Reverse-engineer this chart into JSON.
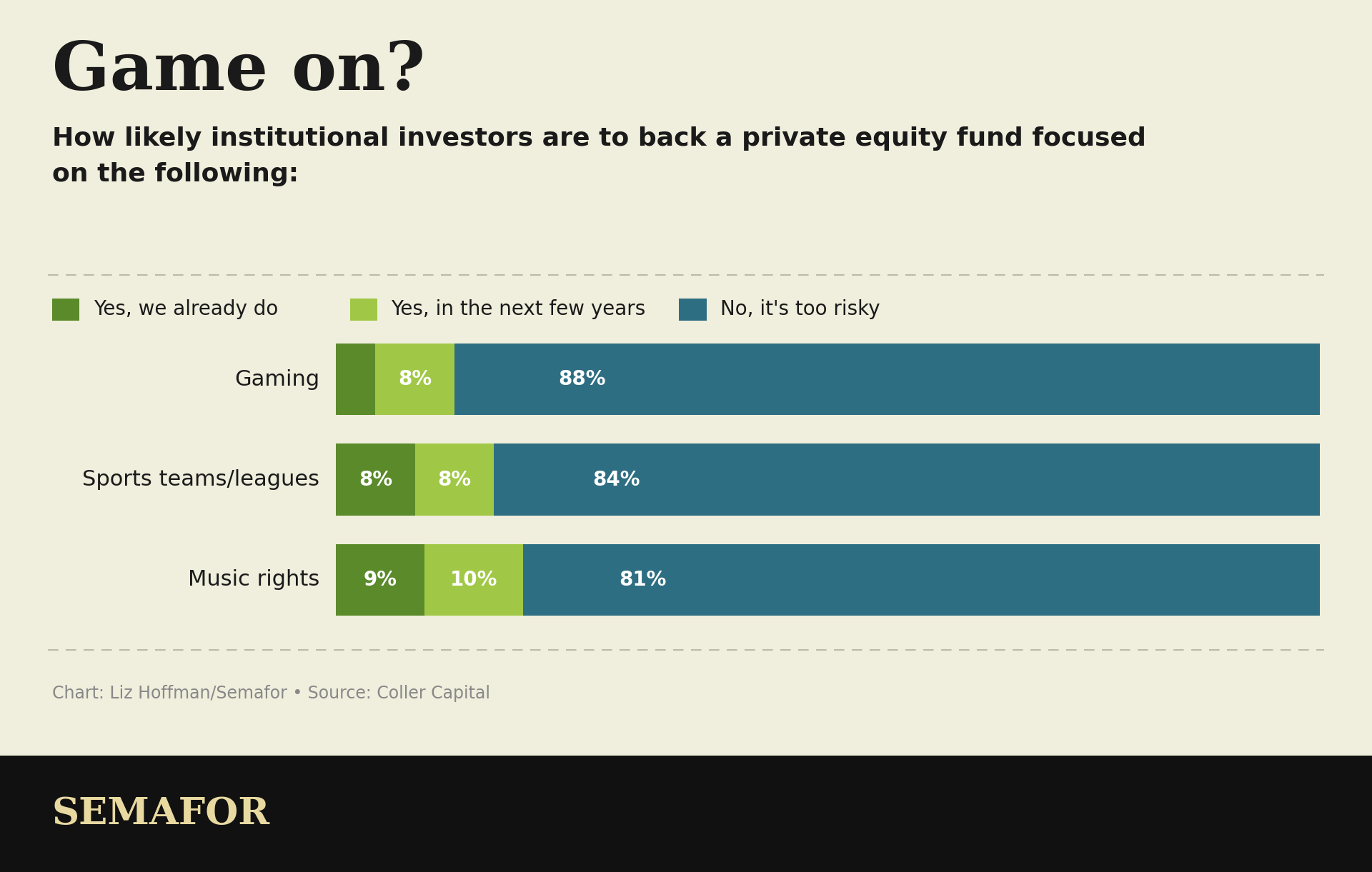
{
  "title": "Game on?",
  "subtitle": "How likely institutional investors are to back a private equity fund focused\non the following:",
  "categories": [
    "Gaming",
    "Sports teams/leagues",
    "Music rights"
  ],
  "yes_already": [
    4,
    8,
    9
  ],
  "yes_next": [
    8,
    8,
    10
  ],
  "no_risky": [
    88,
    84,
    81
  ],
  "color_yes_already": "#5a8a2a",
  "color_yes_next": "#a0c846",
  "color_no_risky": "#2e6e82",
  "background_color": "#f0eedc",
  "legend_labels": [
    "Yes, we already do",
    "Yes, in the next few years",
    "No, it's too risky"
  ],
  "source_text": "Chart: Liz Hoffman/Semafor • Source: Coller Capital",
  "footer_text": "SEMAFOR",
  "footer_bg": "#111111",
  "footer_text_color": "#e8d9a0",
  "title_color": "#1a1a1a",
  "label_color": "#1a1a1a",
  "source_color": "#888888",
  "title_fontsize": 68,
  "subtitle_fontsize": 26,
  "legend_fontsize": 20,
  "bar_label_fontsize": 20,
  "cat_label_fontsize": 22,
  "source_fontsize": 17,
  "footer_fontsize": 38
}
